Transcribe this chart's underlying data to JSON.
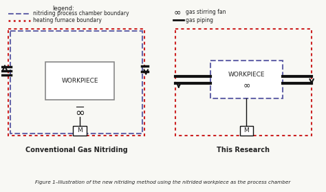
{
  "bg_color": "#f8f8f4",
  "text_color": "#222222",
  "dashed_blue": "#6666aa",
  "dotted_red": "#cc2222",
  "pipe_color": "#111111",
  "gray_box": "#888888",
  "legend_title": "legend:",
  "legend1_text": "nitriding process chamber boundary",
  "legend2_text": "heating furnace boundary",
  "legend3_text": "gas stirring fan",
  "legend4_text": "gas piping",
  "label_left": "Conventional Gas Nitriding",
  "label_right": "This Research",
  "caption": "Figure 1–Illustration of the new nitriding method using the nitrided workpiece as the process chamber",
  "workpiece_text": "WORKPIECE"
}
